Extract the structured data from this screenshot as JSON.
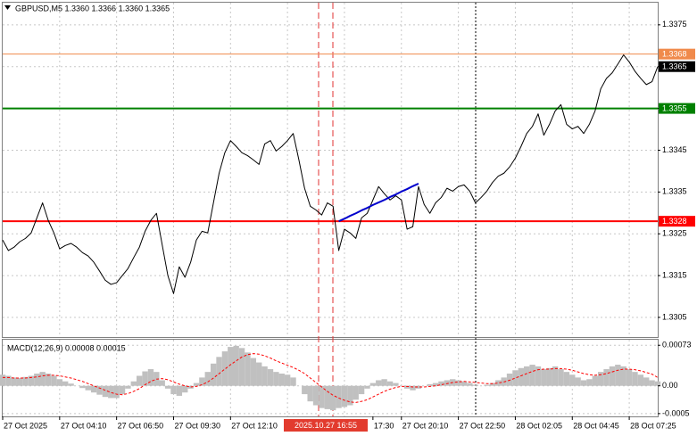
{
  "chart_data": [
    {
      "type": "line",
      "title": "GBPUSD,M5  1.3360 1.3366 1.3360 1.3365",
      "series": [
        {
          "color": "#000000",
          "values": [
            1.33235,
            1.3321,
            1.33218,
            1.33231,
            1.33239,
            1.33252,
            1.33288,
            1.33324,
            1.33282,
            1.33252,
            1.33214,
            1.33222,
            1.33227,
            1.33218,
            1.33205,
            1.33197,
            1.33182,
            1.33161,
            1.33139,
            1.33129,
            1.33133,
            1.3315,
            1.33167,
            1.33193,
            1.33218,
            1.33256,
            1.33282,
            1.33299,
            1.33224,
            1.3315,
            1.33107,
            1.33171,
            1.33146,
            1.33182,
            1.33235,
            1.33256,
            1.33252,
            1.33324,
            1.33395,
            1.33444,
            1.33473,
            1.33459,
            1.33444,
            1.33437,
            1.33427,
            1.33416,
            1.33465,
            1.33473,
            1.33448,
            1.33459,
            1.33473,
            1.3349,
            1.33427,
            1.33359,
            1.33316,
            1.33307,
            1.33295,
            1.33324,
            1.33316,
            1.3321,
            1.33261,
            1.33252,
            1.33239,
            1.33288,
            1.33299,
            1.33331,
            1.33363,
            1.33346,
            1.33331,
            1.33341,
            1.33331,
            1.33261,
            1.33267,
            1.33363,
            1.3332,
            1.33299,
            1.33324,
            1.33337,
            1.33359,
            1.33352,
            1.33363,
            1.33367,
            1.33352,
            1.33324,
            1.33337,
            1.33352,
            1.33373,
            1.33388,
            1.33395,
            1.3341,
            1.33431,
            1.33459,
            1.3349,
            1.33507,
            1.33537,
            1.33486,
            1.33512,
            1.33544,
            1.33559,
            1.33512,
            1.33501,
            1.33507,
            1.3349,
            1.33512,
            1.33544,
            1.33597,
            1.33622,
            1.33635,
            1.33656,
            1.33678,
            1.33661,
            1.33639,
            1.33622,
            1.33607,
            1.33614,
            1.3365
          ]
        },
        {
          "color": "#0000cd",
          "values": [
            null,
            null,
            null,
            null,
            null,
            null,
            null,
            null,
            null,
            null,
            null,
            null,
            null,
            null,
            null,
            null,
            null,
            null,
            null,
            null,
            null,
            null,
            null,
            null,
            null,
            null,
            null,
            null,
            null,
            null,
            null,
            null,
            null,
            null,
            null,
            null,
            null,
            null,
            null,
            null,
            null,
            null,
            null,
            null,
            null,
            null,
            null,
            null,
            null,
            null,
            null,
            null,
            null,
            null,
            null,
            null,
            null,
            null,
            null,
            1.3328,
            1.33286,
            1.33293,
            1.33299,
            1.33306,
            1.33312,
            1.33319,
            1.33325,
            1.33331,
            1.33338,
            1.33344,
            1.33351,
            1.33357,
            1.33364,
            1.3337,
            null,
            null,
            null,
            null,
            null,
            null,
            null,
            null,
            null,
            null,
            null,
            null,
            null,
            null,
            null,
            null,
            null,
            null,
            null,
            null,
            null,
            null,
            null,
            null,
            null,
            null,
            null,
            null,
            null,
            null,
            null,
            null,
            null,
            null,
            null,
            null,
            null,
            null,
            null,
            null,
            null,
            null
          ]
        }
      ],
      "ylim": [
        1.33003,
        1.33803
      ],
      "yticks": [
        1.3305,
        1.3315,
        1.3325,
        1.3335,
        1.3345,
        1.3355,
        1.3365,
        1.3375
      ],
      "grid": true,
      "levels": [
        {
          "value": 1.3368,
          "color": "#f08a4b"
        },
        {
          "value": 1.3355,
          "color": "#008000"
        },
        {
          "value": 1.3328,
          "color": "#ff0000"
        }
      ],
      "current_price": 1.3365
    },
    {
      "type": "bar",
      "title": "MACD(12,26,9) 0.00008 0.00015",
      "categories": [
        "27 Oct 2025",
        null,
        null,
        null,
        null,
        null,
        null,
        null,
        null,
        null,
        "27 Oct 04:10",
        null,
        null,
        null,
        null,
        null,
        null,
        null,
        null,
        null,
        "27 Oct 06:50",
        null,
        null,
        null,
        null,
        null,
        null,
        null,
        null,
        null,
        "27 Oct 09:30",
        null,
        null,
        null,
        null,
        null,
        null,
        null,
        null,
        null,
        "27 Oct 12:10",
        null,
        null,
        null,
        null,
        null,
        null,
        null,
        null,
        null,
        null,
        null,
        null,
        null,
        null,
        null,
        null,
        null,
        null,
        null,
        null,
        null,
        null,
        null,
        null,
        "17:30",
        null,
        null,
        null,
        null,
        "27 Oct 20:10",
        null,
        null,
        null,
        null,
        null,
        null,
        null,
        null,
        null,
        "27 Oct 22:50",
        null,
        null,
        null,
        null,
        null,
        null,
        null,
        null,
        null,
        "28 Oct 02:05",
        null,
        null,
        null,
        null,
        null,
        null,
        null,
        null,
        null,
        "28 Oct 04:45",
        null,
        null,
        null,
        null,
        null,
        null,
        null,
        null,
        null,
        "28 Oct 07:25",
        null,
        null,
        null,
        null,
        null
      ],
      "series": [
        {
          "type": "bar",
          "color": "#c0c0c0",
          "values": [
            0.0002,
            0.00018,
            0.00015,
            0.00014,
            0.00016,
            0.00018,
            0.00022,
            0.00025,
            0.00022,
            0.00018,
            0.00012,
            8e-05,
            4e-05,
            0,
            -4e-05,
            -8e-05,
            -0.00012,
            -0.00016,
            -0.0002,
            -0.00022,
            -0.00022,
            -0.00015,
            -5e-05,
            8e-05,
            0.00018,
            0.00026,
            0.0003,
            0.00025,
            0.0001,
            -5e-05,
            -0.00015,
            -0.00018,
            -0.00012,
            -5e-05,
            5e-05,
            0.00015,
            0.00025,
            0.0004,
            0.00052,
            0.00062,
            0.0007,
            0.00072,
            0.00068,
            0.0006,
            0.0005,
            0.00042,
            0.00035,
            0.0003,
            0.00025,
            0.00022,
            0.0002,
            0.00015,
            0,
            -0.00015,
            -0.00028,
            -0.00035,
            -0.0004,
            -0.00042,
            -0.00044,
            -0.0004,
            -0.00038,
            -0.00035,
            -0.00025,
            -0.00015,
            -5e-05,
            5e-05,
            0.0001,
            0.00012,
            8e-05,
            5e-05,
            0,
            -5e-05,
            -8e-05,
            -5e-05,
            0,
            3e-05,
            5e-05,
            8e-05,
            0.0001,
            0.00012,
            0.0001,
            8e-05,
            5e-05,
            2e-05,
            0,
            2e-05,
            5e-05,
            0.0001,
            0.00015,
            0.00022,
            0.00028,
            0.00032,
            0.00035,
            0.00038,
            0.00035,
            0.0003,
            0.00032,
            0.00035,
            0.0003,
            0.00025,
            0.0002,
            0.00015,
            0.0001,
            0.00012,
            0.00018,
            0.00025,
            0.0003,
            0.00035,
            0.00038,
            0.00035,
            0.0003,
            0.00025,
            0.0002,
            0.00015,
            0.0001,
            8e-05
          ]
        },
        {
          "type": "line",
          "color": "#ff0000",
          "dashed": true,
          "values": [
            0.00015,
            0.00015,
            0.00014,
            0.00014,
            0.00014,
            0.00015,
            0.00016,
            0.00018,
            0.00019,
            0.00019,
            0.00018,
            0.00016,
            0.00014,
            0.00011,
            8e-05,
            4e-05,
            0,
            -4e-05,
            -8e-05,
            -0.00012,
            -0.00015,
            -0.00016,
            -0.00014,
            -0.0001,
            -5e-05,
            2e-05,
            8e-05,
            0.00012,
            0.00013,
            0.00011,
            7e-05,
            3e-05,
            0,
            -2e-05,
            -1e-05,
            2e-05,
            7e-05,
            0.00014,
            0.00022,
            0.0003,
            0.00038,
            0.00045,
            0.00052,
            0.00056,
            0.00058,
            0.00057,
            0.00054,
            0.0005,
            0.00045,
            0.00041,
            0.00037,
            0.00033,
            0.00028,
            0.00022,
            0.00014,
            6e-05,
            -2e-05,
            -0.0001,
            -0.00017,
            -0.00022,
            -0.00026,
            -0.00029,
            -0.0003,
            -0.00028,
            -0.00025,
            -0.0002,
            -0.00015,
            -0.0001,
            -6e-05,
            -3e-05,
            -1e-05,
            -1e-05,
            -2e-05,
            -2e-05,
            -2e-05,
            -1e-05,
            0,
            2e-05,
            4e-05,
            6e-05,
            7e-05,
            8e-05,
            7e-05,
            6e-05,
            5e-05,
            4e-05,
            4e-05,
            5e-05,
            7e-05,
            0.0001,
            0.00014,
            0.00018,
            0.00022,
            0.00026,
            0.00029,
            0.0003,
            0.0003,
            0.00031,
            0.00031,
            0.0003,
            0.00028,
            0.00025,
            0.00022,
            0.0002,
            0.00019,
            0.0002,
            0.00022,
            0.00025,
            0.00028,
            0.0003,
            0.0003,
            0.00029,
            0.00027,
            0.00024,
            0.00021,
            0.00015
          ]
        }
      ],
      "ylim": [
        -0.00055,
        0.00083
      ],
      "yticks": [
        0.00073,
        {
          "value": 0,
          "label": "0.00"
        },
        -0.0005
      ],
      "grid": true
    }
  ],
  "crosshair_label": "2025.10.27 16:55"
}
